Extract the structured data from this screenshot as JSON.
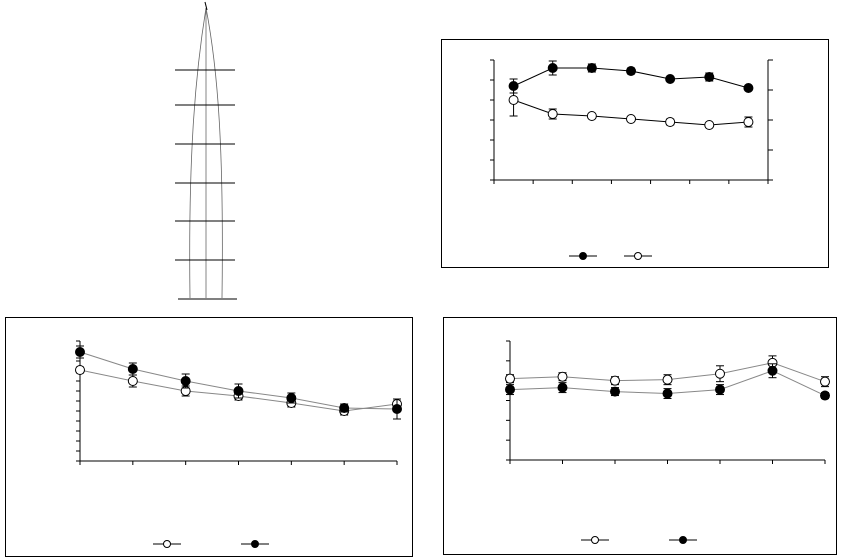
{
  "chart_data": [
    {
      "type": "diagram",
      "description_ref": "top-left-schematic",
      "rungs": 6
    },
    {
      "type": "line",
      "xlim": [
        0,
        7
      ],
      "ylim": [
        0,
        6
      ],
      "y2lim": [
        0,
        4
      ],
      "x": [
        0.5,
        1.5,
        2.5,
        3.5,
        4.5,
        5.5,
        6.5
      ],
      "series": [
        {
          "marker": "filled",
          "values": [
            4.7,
            5.6,
            5.6,
            5.45,
            5.05,
            5.15,
            4.6
          ],
          "errors": [
            0.35,
            0.35,
            0.2,
            0.15,
            0.1,
            0.2,
            0.1
          ]
        },
        {
          "marker": "open",
          "values": [
            4.0,
            3.3,
            3.2,
            3.05,
            2.9,
            2.75,
            2.9
          ],
          "errors": [
            0.8,
            0.25,
            0.1,
            0.1,
            0.15,
            0.1,
            0.25
          ]
        }
      ],
      "legend": [
        {
          "marker": "filled"
        },
        {
          "marker": "open"
        }
      ]
    },
    {
      "type": "line",
      "xlim": [
        0,
        6
      ],
      "ylim": [
        0,
        12
      ],
      "x": [
        0,
        1,
        2,
        3,
        4,
        5,
        6
      ],
      "series": [
        {
          "marker": "open",
          "values": [
            9.1,
            8.0,
            7.0,
            6.5,
            5.8,
            5.0,
            5.7
          ],
          "errors": [
            0.3,
            0.6,
            0.5,
            0.4,
            0.4,
            0.4,
            0.3
          ]
        },
        {
          "marker": "filled",
          "values": [
            10.9,
            9.2,
            8.0,
            7.0,
            6.3,
            5.3,
            5.2
          ],
          "errors": [
            0.6,
            0.6,
            0.7,
            0.7,
            0.5,
            0.4,
            1.0
          ]
        }
      ],
      "legend": [
        {
          "marker": "open"
        },
        {
          "marker": "filled"
        }
      ]
    },
    {
      "type": "line",
      "xlim": [
        0,
        6
      ],
      "ylim": [
        0,
        12
      ],
      "x": [
        0,
        1,
        2,
        3,
        4,
        5,
        6
      ],
      "series": [
        {
          "marker": "open",
          "values": [
            8.2,
            8.4,
            8.0,
            8.1,
            8.7,
            9.8,
            7.9
          ],
          "errors": [
            0.4,
            0.4,
            0.4,
            0.5,
            0.8,
            0.7,
            0.5
          ]
        },
        {
          "marker": "filled",
          "values": [
            7.1,
            7.3,
            6.9,
            6.7,
            7.1,
            9.0,
            6.5
          ],
          "errors": [
            0.5,
            0.5,
            0.4,
            0.5,
            0.5,
            0.7,
            0.3
          ]
        }
      ],
      "legend": [
        {
          "marker": "open"
        },
        {
          "marker": "filled"
        }
      ]
    }
  ]
}
